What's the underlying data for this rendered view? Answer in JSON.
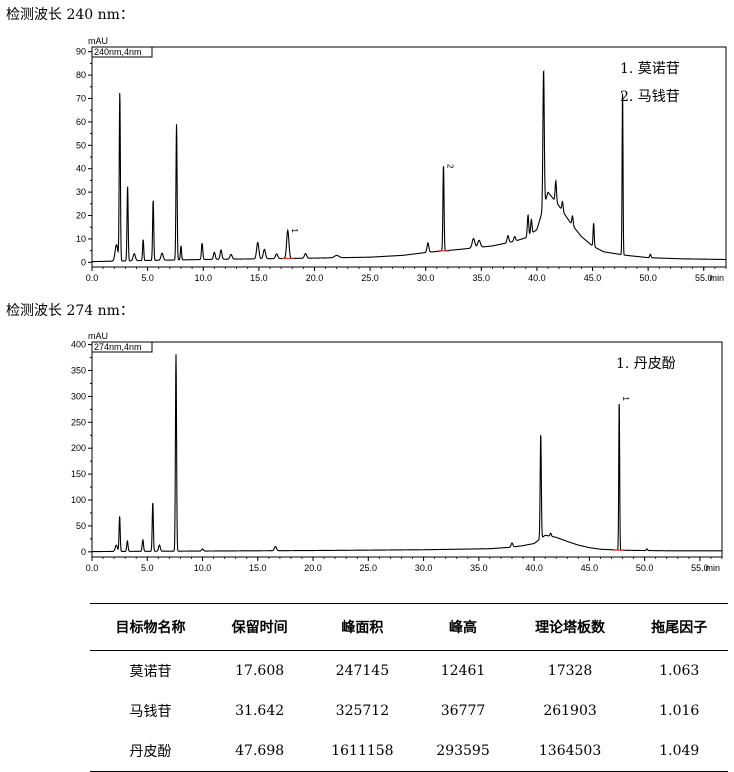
{
  "chart_data": [
    {
      "type": "line",
      "section_label": "检测波长 240 nm：",
      "y_unit": "mAU",
      "channel_tag": "240nm,4nm",
      "xlabel": "min",
      "xlim": [
        0,
        57
      ],
      "ylim": [
        -2,
        92
      ],
      "x_ticks": [
        "0.0",
        "5.0",
        "10.0",
        "15.0",
        "20.0",
        "25.0",
        "30.0",
        "35.0",
        "40.0",
        "45.0",
        "50.0",
        "55.0"
      ],
      "y_ticks": [
        "0",
        "10",
        "20",
        "30",
        "40",
        "50",
        "60",
        "70",
        "80",
        "90"
      ],
      "legend": [
        "1.  莫诺苷",
        "2.  马钱苷"
      ],
      "peak_labels": [
        {
          "x": 17.6,
          "y": 14.5,
          "text": "1"
        },
        {
          "x": 31.6,
          "y": 42,
          "text": "2"
        }
      ],
      "baseline": [
        [
          0,
          0.3
        ],
        [
          5,
          0.8
        ],
        [
          10,
          1.2
        ],
        [
          15,
          1.5
        ],
        [
          20,
          1.8
        ],
        [
          25,
          2.2
        ],
        [
          28,
          3.0
        ],
        [
          30,
          4.2
        ],
        [
          33,
          5.5
        ],
        [
          36,
          7.0
        ],
        [
          38,
          9.0
        ],
        [
          39,
          10.5
        ],
        [
          40,
          14
        ],
        [
          41,
          30
        ],
        [
          42,
          24
        ],
        [
          43,
          17
        ],
        [
          44,
          11
        ],
        [
          45,
          7
        ],
        [
          46,
          4.5
        ],
        [
          48,
          3.0
        ],
        [
          50,
          2.0
        ],
        [
          53,
          1.5
        ],
        [
          57,
          1.2
        ]
      ],
      "peaks": [
        {
          "x": 2.2,
          "h": 7,
          "w": 0.12
        },
        {
          "x": 2.5,
          "h": 72,
          "w": 0.05
        },
        {
          "x": 3.2,
          "h": 32,
          "w": 0.05
        },
        {
          "x": 3.8,
          "h": 3,
          "w": 0.1
        },
        {
          "x": 4.6,
          "h": 9,
          "w": 0.05
        },
        {
          "x": 5.5,
          "h": 26,
          "w": 0.05
        },
        {
          "x": 6.3,
          "h": 3,
          "w": 0.1
        },
        {
          "x": 7.6,
          "h": 58,
          "w": 0.05
        },
        {
          "x": 8.0,
          "h": 6,
          "w": 0.05
        },
        {
          "x": 9.9,
          "h": 7,
          "w": 0.06
        },
        {
          "x": 11.0,
          "h": 3,
          "w": 0.08
        },
        {
          "x": 11.6,
          "h": 4,
          "w": 0.08
        },
        {
          "x": 12.5,
          "h": 2,
          "w": 0.1
        },
        {
          "x": 14.9,
          "h": 7,
          "w": 0.1
        },
        {
          "x": 15.5,
          "h": 4,
          "w": 0.1
        },
        {
          "x": 16.6,
          "h": 2,
          "w": 0.1
        },
        {
          "x": 17.6,
          "h": 12,
          "w": 0.1
        },
        {
          "x": 19.2,
          "h": 2,
          "w": 0.1
        },
        {
          "x": 22.0,
          "h": 1,
          "w": 0.2
        },
        {
          "x": 30.2,
          "h": 4,
          "w": 0.08
        },
        {
          "x": 31.6,
          "h": 37,
          "w": 0.05
        },
        {
          "x": 34.3,
          "h": 4,
          "w": 0.12
        },
        {
          "x": 34.8,
          "h": 3,
          "w": 0.12
        },
        {
          "x": 37.4,
          "h": 3,
          "w": 0.08
        },
        {
          "x": 38.0,
          "h": 2,
          "w": 0.08
        },
        {
          "x": 39.2,
          "h": 9,
          "w": 0.06
        },
        {
          "x": 39.5,
          "h": 6,
          "w": 0.06
        },
        {
          "x": 40.6,
          "h": 59,
          "w": 0.06
        },
        {
          "x": 41.7,
          "h": 9,
          "w": 0.06
        },
        {
          "x": 42.3,
          "h": 4,
          "w": 0.06
        },
        {
          "x": 43.2,
          "h": 4,
          "w": 0.06
        },
        {
          "x": 45.1,
          "h": 10,
          "w": 0.05
        },
        {
          "x": 47.7,
          "h": 71,
          "w": 0.04
        },
        {
          "x": 50.2,
          "h": 1.5,
          "w": 0.06
        }
      ]
    },
    {
      "type": "line",
      "section_label": "检测波长 274 nm：",
      "y_unit": "mAU",
      "channel_tag": "274nm,4nm",
      "xlabel": "min",
      "xlim": [
        0,
        57
      ],
      "ylim": [
        -10,
        405
      ],
      "x_ticks": [
        "0.0",
        "5.0",
        "10.0",
        "15.0",
        "20.0",
        "25.0",
        "30.0",
        "35.0",
        "40.0",
        "45.0",
        "50.0",
        "55.0"
      ],
      "y_ticks": [
        "0",
        "50",
        "100",
        "150",
        "200",
        "250",
        "300",
        "350",
        "400"
      ],
      "legend": [
        "1.  丹皮酚"
      ],
      "peak_labels": [
        {
          "x": 47.7,
          "y": 300,
          "text": "1"
        }
      ],
      "baseline": [
        [
          0,
          0.5
        ],
        [
          10,
          1.5
        ],
        [
          20,
          2.5
        ],
        [
          30,
          4
        ],
        [
          36,
          6
        ],
        [
          38,
          9
        ],
        [
          39,
          12
        ],
        [
          40,
          16
        ],
        [
          41,
          32
        ],
        [
          42,
          28
        ],
        [
          43,
          20
        ],
        [
          44,
          13
        ],
        [
          45,
          8
        ],
        [
          46,
          5
        ],
        [
          48,
          3
        ],
        [
          52,
          2
        ],
        [
          57,
          2
        ]
      ],
      "peaks": [
        {
          "x": 2.2,
          "h": 12,
          "w": 0.1
        },
        {
          "x": 2.5,
          "h": 68,
          "w": 0.05
        },
        {
          "x": 3.2,
          "h": 20,
          "w": 0.06
        },
        {
          "x": 4.6,
          "h": 22,
          "w": 0.06
        },
        {
          "x": 5.5,
          "h": 95,
          "w": 0.05
        },
        {
          "x": 6.1,
          "h": 12,
          "w": 0.08
        },
        {
          "x": 7.6,
          "h": 380,
          "w": 0.05
        },
        {
          "x": 10.0,
          "h": 4,
          "w": 0.08
        },
        {
          "x": 16.6,
          "h": 8,
          "w": 0.1
        },
        {
          "x": 38.0,
          "h": 8,
          "w": 0.08
        },
        {
          "x": 40.6,
          "h": 203,
          "w": 0.05
        },
        {
          "x": 41.5,
          "h": 6,
          "w": 0.06
        },
        {
          "x": 47.7,
          "h": 291,
          "w": 0.04
        },
        {
          "x": 50.2,
          "h": 3,
          "w": 0.06
        }
      ]
    }
  ],
  "table": {
    "headers": [
      "目标物名称",
      "保留时间",
      "峰面积",
      "峰高",
      "理论塔板数",
      "拖尾因子"
    ],
    "rows": [
      [
        "莫诺苷",
        "17.608",
        "247145",
        "12461",
        "17328",
        "1.063"
      ],
      [
        "马钱苷",
        "31.642",
        "325712",
        "36777",
        "261903",
        "1.016"
      ],
      [
        "丹皮酚",
        "47.698",
        "1611158",
        "293595",
        "1364503",
        "1.049"
      ]
    ]
  }
}
